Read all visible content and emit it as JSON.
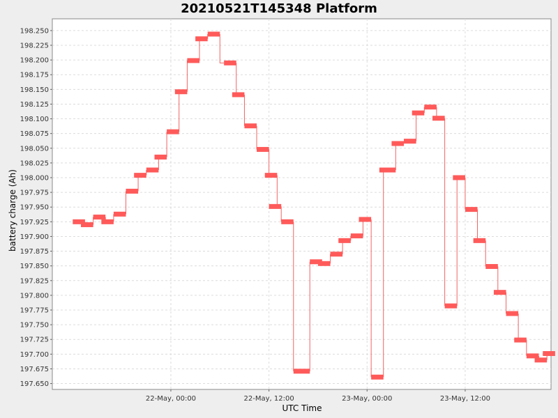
{
  "chart_data": {
    "type": "line",
    "title": "20210521T145348 Platform",
    "xlabel": "UTC Time",
    "ylabel": "battery charge (Ah)",
    "ylim": [
      197.64,
      198.27
    ],
    "xlim": [
      "2021-05-21T09:30:00Z",
      "2021-05-23T22:30:00Z"
    ],
    "grid": true,
    "legend": "none",
    "colors": {
      "series": "#ff5a5a",
      "line": "#f06464",
      "plot_bg": "#ffffff",
      "grid": "#dcdcdc"
    },
    "y_ticks": [
      "197.650",
      "197.675",
      "197.700",
      "197.725",
      "197.750",
      "197.775",
      "197.800",
      "197.825",
      "197.850",
      "197.875",
      "197.900",
      "197.925",
      "197.950",
      "197.975",
      "198.000",
      "198.025",
      "198.050",
      "198.075",
      "198.100",
      "198.125",
      "198.150",
      "198.175",
      "198.200",
      "198.225",
      "198.250"
    ],
    "x_ticks": [
      {
        "label": "22-May, 00:00",
        "time": "2021-05-22T00:00:00Z"
      },
      {
        "label": "22-May, 12:00",
        "time": "2021-05-22T12:00:00Z"
      },
      {
        "label": "23-May, 00:00",
        "time": "2021-05-23T00:00:00Z"
      },
      {
        "label": "23-May, 12:00",
        "time": "2021-05-23T12:00:00Z"
      }
    ],
    "series": [
      {
        "points": [
          {
            "start": "2021-05-21T12:00:00Z",
            "end": "2021-05-21T13:30:00Z",
            "y": 197.925
          },
          {
            "start": "2021-05-21T13:00:00Z",
            "end": "2021-05-21T14:30:00Z",
            "y": 197.92
          },
          {
            "start": "2021-05-21T14:30:00Z",
            "end": "2021-05-21T16:00:00Z",
            "y": 197.933
          },
          {
            "start": "2021-05-21T15:30:00Z",
            "end": "2021-05-21T17:00:00Z",
            "y": 197.925
          },
          {
            "start": "2021-05-21T17:00:00Z",
            "end": "2021-05-21T18:30:00Z",
            "y": 197.938
          },
          {
            "start": "2021-05-21T18:30:00Z",
            "end": "2021-05-21T20:00:00Z",
            "y": 197.977
          },
          {
            "start": "2021-05-21T19:30:00Z",
            "end": "2021-05-21T21:00:00Z",
            "y": 198.004
          },
          {
            "start": "2021-05-21T21:00:00Z",
            "end": "2021-05-21T22:30:00Z",
            "y": 198.013
          },
          {
            "start": "2021-05-21T22:00:00Z",
            "end": "2021-05-21T23:30:00Z",
            "y": 198.035
          },
          {
            "start": "2021-05-21T23:30:00Z",
            "end": "2021-05-22T01:00:00Z",
            "y": 198.078
          },
          {
            "start": "2021-05-22T00:30:00Z",
            "end": "2021-05-22T02:00:00Z",
            "y": 198.146
          },
          {
            "start": "2021-05-22T02:00:00Z",
            "end": "2021-05-22T03:30:00Z",
            "y": 198.199
          },
          {
            "start": "2021-05-22T03:00:00Z",
            "end": "2021-05-22T04:30:00Z",
            "y": 198.236
          },
          {
            "start": "2021-05-22T04:30:00Z",
            "end": "2021-05-22T06:00:00Z",
            "y": 198.244
          },
          {
            "start": "2021-05-22T06:30:00Z",
            "end": "2021-05-22T08:00:00Z",
            "y": 198.195
          },
          {
            "start": "2021-05-22T07:30:00Z",
            "end": "2021-05-22T09:00:00Z",
            "y": 198.141
          },
          {
            "start": "2021-05-22T09:00:00Z",
            "end": "2021-05-22T10:30:00Z",
            "y": 198.088
          },
          {
            "start": "2021-05-22T10:30:00Z",
            "end": "2021-05-22T12:00:00Z",
            "y": 198.048
          },
          {
            "start": "2021-05-22T11:30:00Z",
            "end": "2021-05-22T13:00:00Z",
            "y": 198.004
          },
          {
            "start": "2021-05-22T12:00:00Z",
            "end": "2021-05-22T13:30:00Z",
            "y": 197.951
          },
          {
            "start": "2021-05-22T13:30:00Z",
            "end": "2021-05-22T15:00:00Z",
            "y": 197.925
          },
          {
            "start": "2021-05-22T15:00:00Z",
            "end": "2021-05-22T17:00:00Z",
            "y": 197.671
          },
          {
            "start": "2021-05-22T17:00:00Z",
            "end": "2021-05-22T18:30:00Z",
            "y": 197.857
          },
          {
            "start": "2021-05-22T18:00:00Z",
            "end": "2021-05-22T19:30:00Z",
            "y": 197.854
          },
          {
            "start": "2021-05-22T19:30:00Z",
            "end": "2021-05-22T21:00:00Z",
            "y": 197.87
          },
          {
            "start": "2021-05-22T20:30:00Z",
            "end": "2021-05-22T22:00:00Z",
            "y": 197.893
          },
          {
            "start": "2021-05-22T22:00:00Z",
            "end": "2021-05-22T23:30:00Z",
            "y": 197.901
          },
          {
            "start": "2021-05-22T23:00:00Z",
            "end": "2021-05-23T00:30:00Z",
            "y": 197.929
          },
          {
            "start": "2021-05-23T00:30:00Z",
            "end": "2021-05-23T02:00:00Z",
            "y": 197.661
          },
          {
            "start": "2021-05-23T01:30:00Z",
            "end": "2021-05-23T03:30:00Z",
            "y": 198.013
          },
          {
            "start": "2021-05-23T03:00:00Z",
            "end": "2021-05-23T04:30:00Z",
            "y": 198.058
          },
          {
            "start": "2021-05-23T04:30:00Z",
            "end": "2021-05-23T06:00:00Z",
            "y": 198.062
          },
          {
            "start": "2021-05-23T05:30:00Z",
            "end": "2021-05-23T07:00:00Z",
            "y": 198.11
          },
          {
            "start": "2021-05-23T07:00:00Z",
            "end": "2021-05-23T08:30:00Z",
            "y": 198.12
          },
          {
            "start": "2021-05-23T08:00:00Z",
            "end": "2021-05-23T09:30:00Z",
            "y": 198.101
          },
          {
            "start": "2021-05-23T09:30:00Z",
            "end": "2021-05-23T11:00:00Z",
            "y": 197.782
          },
          {
            "start": "2021-05-23T10:30:00Z",
            "end": "2021-05-23T12:00:00Z",
            "y": 198.0
          },
          {
            "start": "2021-05-23T12:00:00Z",
            "end": "2021-05-23T13:30:00Z",
            "y": 197.946
          },
          {
            "start": "2021-05-23T13:00:00Z",
            "end": "2021-05-23T14:30:00Z",
            "y": 197.893
          },
          {
            "start": "2021-05-23T14:30:00Z",
            "end": "2021-05-23T16:00:00Z",
            "y": 197.849
          },
          {
            "start": "2021-05-23T15:30:00Z",
            "end": "2021-05-23T17:00:00Z",
            "y": 197.805
          },
          {
            "start": "2021-05-23T17:00:00Z",
            "end": "2021-05-23T18:30:00Z",
            "y": 197.769
          },
          {
            "start": "2021-05-23T18:00:00Z",
            "end": "2021-05-23T19:30:00Z",
            "y": 197.724
          },
          {
            "start": "2021-05-23T19:30:00Z",
            "end": "2021-05-23T21:00:00Z",
            "y": 197.697
          },
          {
            "start": "2021-05-23T20:30:00Z",
            "end": "2021-05-23T22:00:00Z",
            "y": 197.69
          },
          {
            "start": "2021-05-23T21:30:00Z",
            "end": "2021-05-23T23:00:00Z",
            "y": 197.701
          }
        ]
      }
    ]
  }
}
